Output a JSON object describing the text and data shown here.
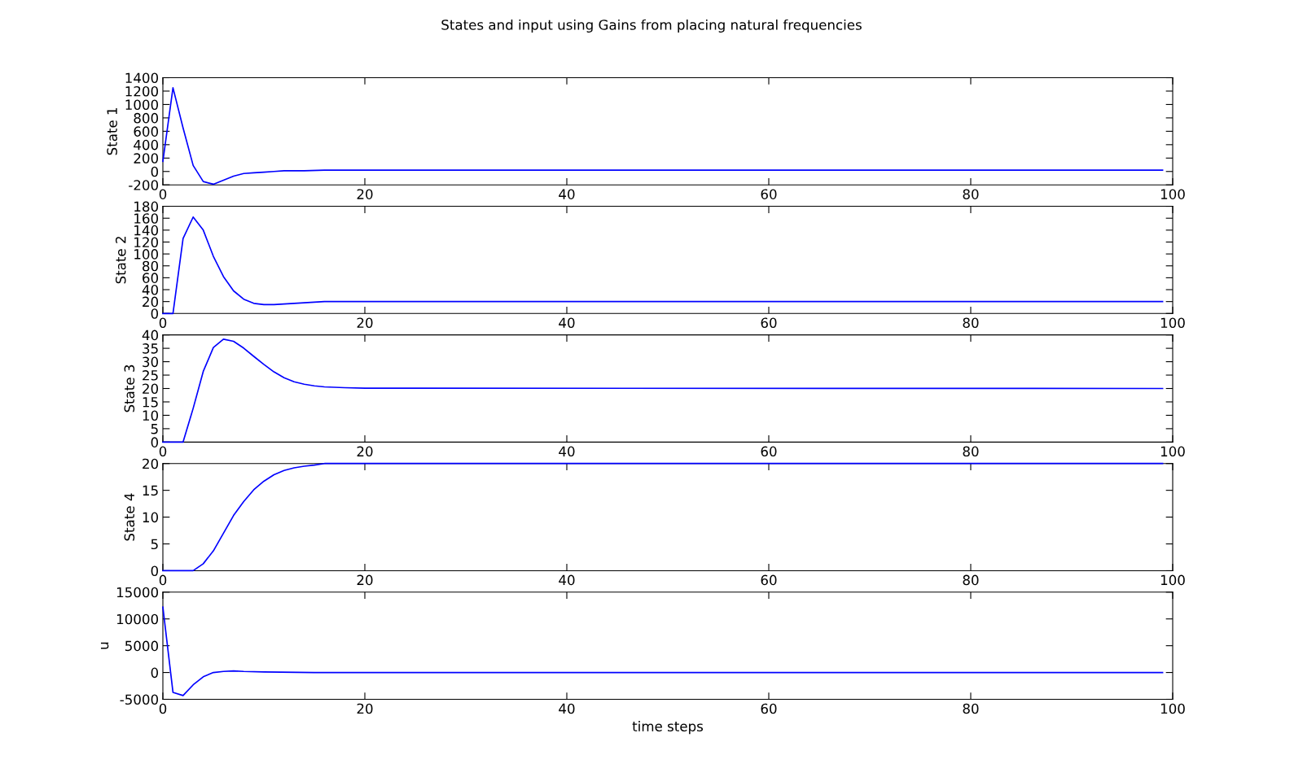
{
  "chart_data": [
    {
      "type": "line",
      "title": "States and input using Gains from placing natural frequencies",
      "ylabel": "State 1",
      "x": [
        0,
        1,
        2,
        3,
        4,
        5,
        6,
        7,
        8,
        9,
        10,
        11,
        12,
        14,
        16,
        20,
        99
      ],
      "series": [
        {
          "color": "#0000ff",
          "values": [
            150,
            1250,
            650,
            90,
            -150,
            -190,
            -130,
            -70,
            -30,
            -20,
            -10,
            0,
            10,
            10,
            20,
            20,
            20
          ]
        }
      ],
      "xlim": [
        0,
        100
      ],
      "xticks": [
        0,
        20,
        40,
        60,
        80,
        100
      ],
      "ylim": [
        -200,
        1400
      ],
      "yticks": [
        -200,
        0,
        200,
        400,
        600,
        800,
        1000,
        1200,
        1400
      ],
      "grid": false
    },
    {
      "type": "line",
      "ylabel": "State 2",
      "x": [
        0,
        1,
        2,
        3,
        4,
        5,
        6,
        7,
        8,
        9,
        10,
        11,
        12,
        14,
        16,
        20,
        99
      ],
      "series": [
        {
          "color": "#0000ff",
          "values": [
            0,
            0,
            126,
            162,
            140,
            96,
            62,
            38,
            24,
            17,
            15,
            15,
            16,
            18,
            20,
            20,
            20
          ]
        }
      ],
      "xlim": [
        0,
        100
      ],
      "xticks": [
        0,
        20,
        40,
        60,
        80,
        100
      ],
      "ylim": [
        0,
        180
      ],
      "yticks": [
        0,
        20,
        40,
        60,
        80,
        100,
        120,
        140,
        160,
        180
      ],
      "grid": false
    },
    {
      "type": "line",
      "ylabel": "State 3",
      "x": [
        0,
        1,
        2,
        3,
        4,
        5,
        6,
        7,
        8,
        9,
        10,
        11,
        12,
        13,
        14,
        15,
        16,
        18,
        20,
        99
      ],
      "series": [
        {
          "color": "#0000ff",
          "values": [
            0,
            0,
            0,
            12.6,
            26.4,
            35.3,
            38.4,
            37.6,
            35.1,
            32,
            29,
            26.2,
            24,
            22.5,
            21.6,
            21,
            20.6,
            20.3,
            20.1,
            20
          ]
        }
      ],
      "xlim": [
        0,
        100
      ],
      "xticks": [
        0,
        20,
        40,
        60,
        80,
        100
      ],
      "ylim": [
        0,
        40
      ],
      "yticks": [
        0,
        5,
        10,
        15,
        20,
        25,
        30,
        35,
        40
      ],
      "grid": false
    },
    {
      "type": "line",
      "ylabel": "State 4",
      "x": [
        0,
        1,
        2,
        3,
        4,
        5,
        6,
        7,
        8,
        9,
        10,
        11,
        12,
        13,
        14,
        15,
        16,
        18,
        20,
        99
      ],
      "series": [
        {
          "color": "#0000ff",
          "values": [
            0,
            0,
            0,
            0,
            1.3,
            3.7,
            7,
            10.3,
            12.9,
            15.1,
            16.7,
            17.9,
            18.7,
            19.2,
            19.5,
            19.7,
            20,
            20,
            20,
            20
          ]
        }
      ],
      "xlim": [
        0,
        100
      ],
      "xticks": [
        0,
        20,
        40,
        60,
        80,
        100
      ],
      "ylim": [
        0,
        20
      ],
      "yticks": [
        0,
        5,
        10,
        15,
        20
      ],
      "grid": false
    },
    {
      "type": "line",
      "ylabel": "u",
      "xlabel": "time steps",
      "x": [
        0,
        1,
        2,
        3,
        4,
        5,
        6,
        7,
        8,
        10,
        15,
        99
      ],
      "series": [
        {
          "color": "#0000ff",
          "values": [
            12200,
            -3700,
            -4300,
            -2300,
            -800,
            0,
            200,
            300,
            200,
            100,
            0,
            0
          ]
        }
      ],
      "xlim": [
        0,
        100
      ],
      "xticks": [
        0,
        20,
        40,
        60,
        80,
        100
      ],
      "ylim": [
        -5000,
        15000
      ],
      "yticks": [
        -5000,
        0,
        5000,
        10000,
        15000
      ],
      "grid": false
    }
  ]
}
